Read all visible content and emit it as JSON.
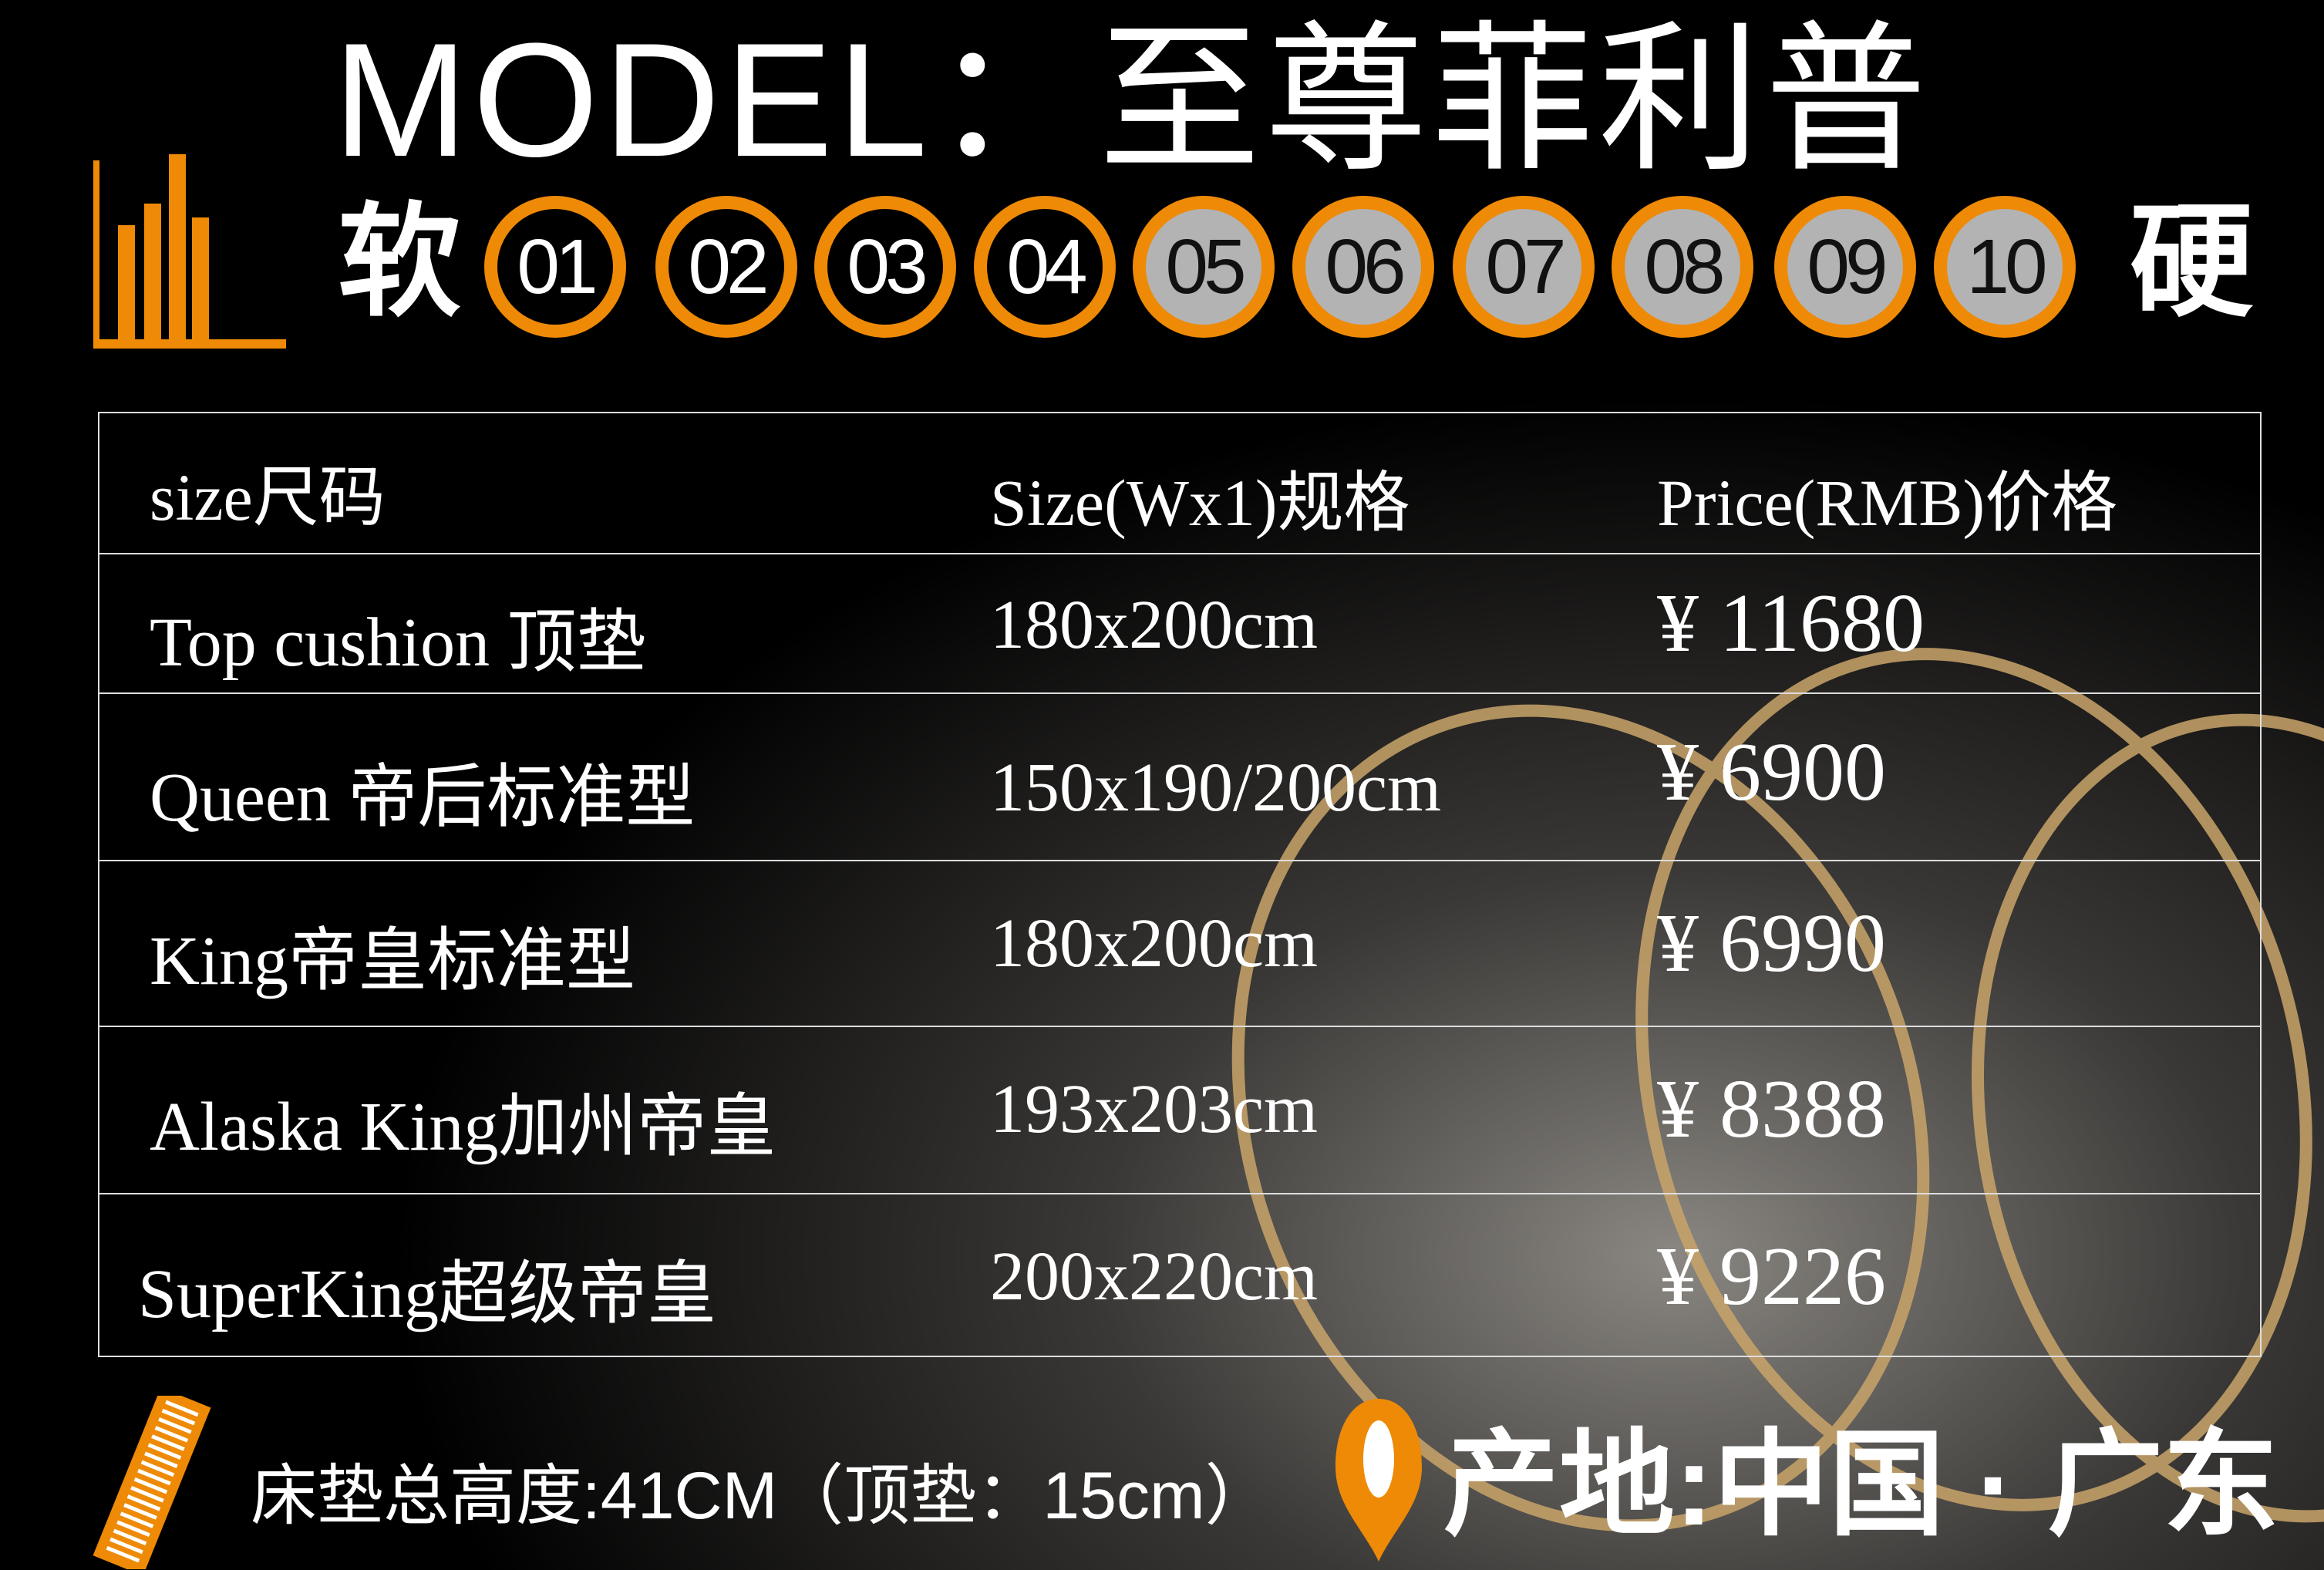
{
  "title": "MODEL：至尊菲利普",
  "firmness": {
    "soft_label": "软",
    "hard_label": "硬",
    "levels": [
      "01",
      "02",
      "03",
      "04",
      "05",
      "06",
      "07",
      "08",
      "09",
      "10"
    ],
    "selected_up_to": "04"
  },
  "table": {
    "headers": [
      "size尺码",
      "Size(Wx1)规格",
      "Price(RMB)价格"
    ],
    "rows": [
      [
        "Top cushion 顶垫",
        "180x200cm",
        "¥ 11680"
      ],
      [
        "Queen 帝后标准型",
        "150x190/200cm",
        "¥ 6900"
      ],
      [
        "King帝皇标准型",
        "180x200cm",
        "¥ 6990"
      ],
      [
        "Alaska  King加州帝皇",
        "193x203cm",
        "¥ 8388"
      ],
      [
        "SuperKing超级帝皇",
        "200x220cm",
        "¥ 9226"
      ]
    ]
  },
  "footer": {
    "height_text": "床垫总高度:41CM（顶垫：15cm）",
    "origin_text": "产地:中国 · 广东"
  },
  "colors": {
    "accent": "#ee8a06",
    "circle_light": "#b3b3b3",
    "background": "#000000"
  },
  "icons": [
    "bar-chart-icon",
    "ruler-icon",
    "location-pin-icon"
  ]
}
